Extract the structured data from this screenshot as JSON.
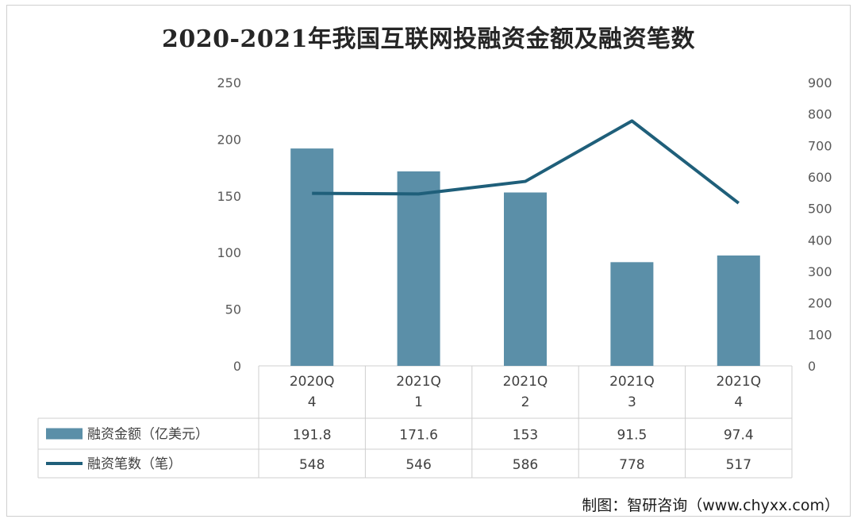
{
  "chart_data": {
    "type": "bar",
    "title": "2020-2021年我国互联网投融资金额及融资笔数",
    "categories": [
      "2020Q\n4",
      "2021Q\n1",
      "2021Q\n2",
      "2021Q\n3",
      "2021Q\n4"
    ],
    "series": [
      {
        "name": "融资金额（亿美元）",
        "type": "bar",
        "axis": "left",
        "color": "#5b8fa8",
        "values": [
          191.8,
          171.6,
          153,
          91.5,
          97.4
        ]
      },
      {
        "name": "融资笔数（笔）",
        "type": "line",
        "axis": "right",
        "color": "#1f5f7a",
        "values": [
          548,
          546,
          586,
          778,
          517
        ]
      }
    ],
    "data_labels": {
      "left": [
        "191.8",
        "171.6",
        "153",
        "91.5",
        "97.4"
      ],
      "right": [
        "548",
        "546",
        "586",
        "778",
        "517"
      ]
    },
    "y_left": {
      "ylim": [
        0,
        250
      ],
      "ticks": [
        "0",
        "50",
        "100",
        "150",
        "200",
        "250"
      ]
    },
    "y_right": {
      "ylim": [
        0,
        900
      ],
      "ticks": [
        "0",
        "100",
        "200",
        "300",
        "400",
        "500",
        "600",
        "700",
        "800",
        "900"
      ]
    },
    "grid": false,
    "legend_placement": "data-table-left"
  },
  "source_credit": "制图：智研咨询（www.chyxx.com）"
}
